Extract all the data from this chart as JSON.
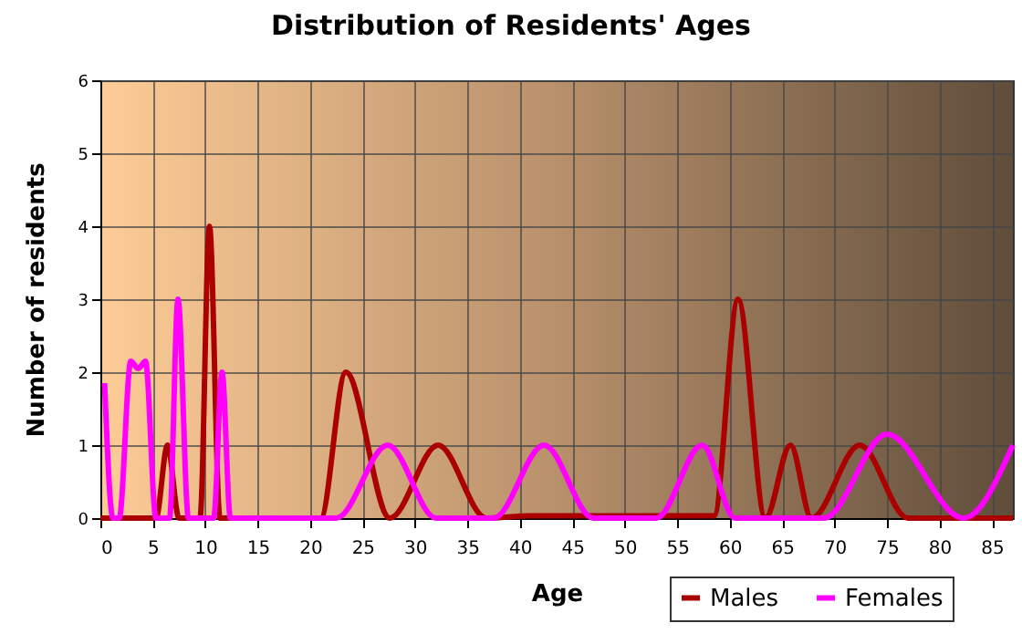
{
  "chart_data": {
    "type": "line",
    "title": "Distribution of Residents' Ages",
    "xlabel": "Age",
    "ylabel": "Number of residents",
    "xlim": [
      0,
      87
    ],
    "xticks": [
      0,
      5,
      10,
      15,
      20,
      25,
      30,
      35,
      40,
      45,
      50,
      55,
      60,
      65,
      70,
      75,
      80,
      85
    ],
    "ylim": [
      0,
      6
    ],
    "yticks": [
      0,
      1,
      2,
      3,
      4,
      5,
      6
    ],
    "grid": true,
    "legend": "bottom right",
    "marker": "none",
    "line_style": "solid",
    "series": [
      {
        "name": "Males",
        "color": "#aa0000",
        "x": [
          0,
          5.3,
          6.4,
          7.5,
          9.5,
          10.4,
          11.4,
          21,
          23.4,
          27.6,
          32.2,
          36.8,
          41,
          58.5,
          60.8,
          63.4,
          65.8,
          67.8,
          72.4,
          77,
          87
        ],
        "values": [
          0,
          0,
          1,
          0,
          0,
          4,
          0,
          0,
          2,
          0,
          1,
          0,
          0.03,
          0.03,
          3,
          0,
          1,
          0,
          1,
          0,
          0
        ]
      },
      {
        "name": "Females",
        "color": "#ff00ff",
        "x": [
          0.4,
          1.2,
          1.8,
          2.9,
          3.6,
          4.3,
          5.3,
          6.6,
          7.4,
          8.4,
          10.8,
          11.6,
          12.4,
          22.5,
          27.4,
          32,
          37.5,
          42.3,
          47,
          53,
          57.4,
          60.5,
          69,
          75,
          82.3,
          87
        ],
        "values": [
          1.85,
          0,
          0,
          2.15,
          2.05,
          2.15,
          0,
          0,
          3,
          0,
          0,
          2,
          0,
          0,
          1,
          0,
          0,
          1,
          0,
          0,
          1,
          0,
          0,
          1.15,
          0,
          1
        ]
      }
    ]
  }
}
